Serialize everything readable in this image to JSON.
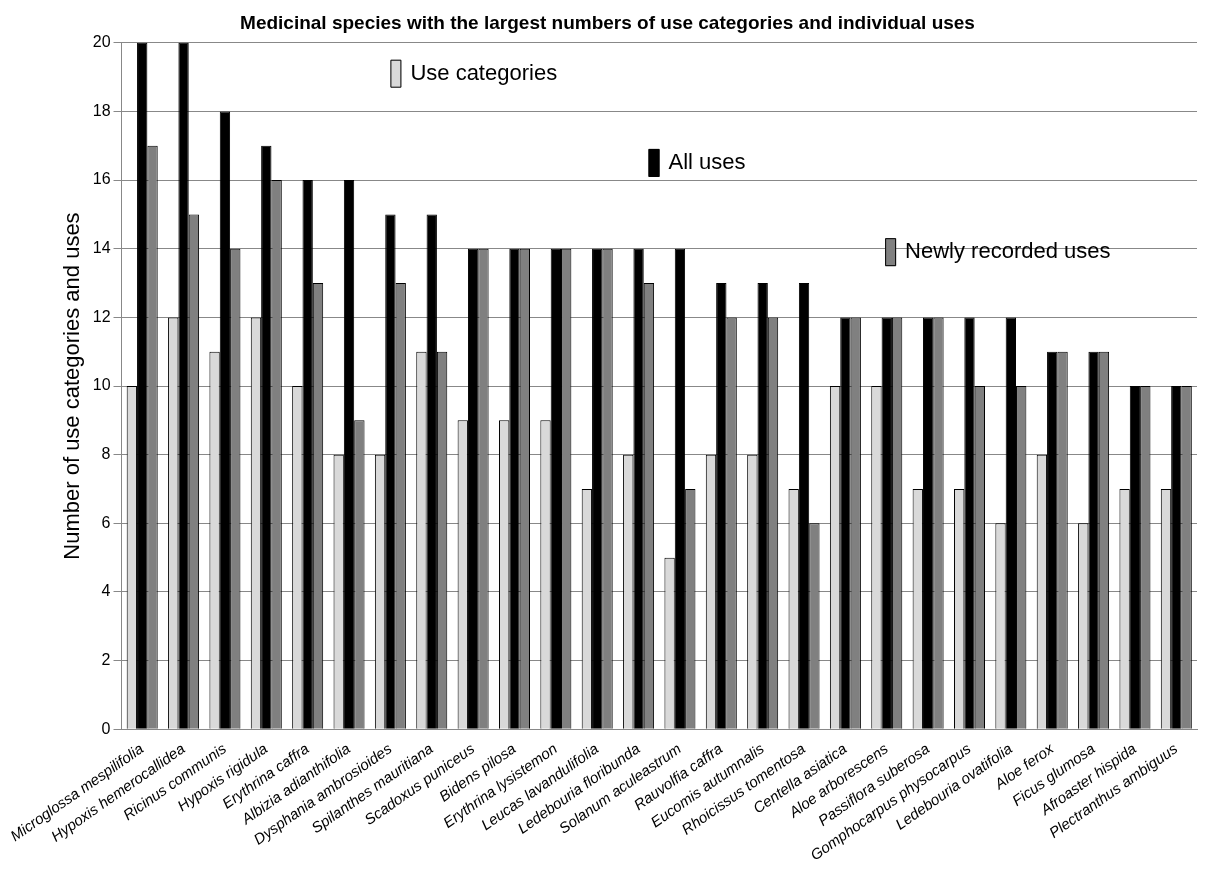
{
  "chart_data": {
    "type": "bar",
    "title": "Medicinal species with the largest numbers of use categories and individual uses",
    "ylabel": "Number of use categories and uses",
    "categories": [
      "Microglossa mespilifolia",
      "Hypoxis hemerocallidea",
      "Ricinus communis",
      "Hypoxis rigidula",
      "Erythrina caffra",
      "Albizia adianthifolia",
      "Dysphania ambrosioides",
      "Spilanthes mauritiana",
      "Scadoxus puniceus",
      "Bidens pilosa",
      "Erythrina lysistemon",
      "Leucas lavandulifolia",
      "Ledebouria floribunda",
      "Solanum aculeastrum",
      "Rauvolfia caffra",
      "Eucomis autumnalis",
      "Rhoicissus tomentosa",
      "Centella asiatica",
      "Aloe arborescens",
      "Passiflora suberosa",
      "Gomphocarpus physocarpus",
      "Ledebouria ovatifolia",
      "Aloe ferox",
      "Ficus glumosa",
      "Afroaster hispida",
      "Plectranthus ambiguus"
    ],
    "series": [
      {
        "name": "Use categories",
        "color": "#d9d9d9",
        "values": [
          10,
          12,
          11,
          12,
          10,
          8,
          8,
          11,
          9,
          9,
          9,
          7,
          8,
          5,
          8,
          8,
          7,
          10,
          10,
          7,
          7,
          6,
          8,
          6,
          7,
          7
        ]
      },
      {
        "name": "All uses",
        "color": "#000000",
        "values": [
          20,
          20,
          18,
          17,
          16,
          16,
          15,
          15,
          14,
          14,
          14,
          14,
          14,
          14,
          13,
          13,
          13,
          12,
          12,
          12,
          12,
          12,
          11,
          11,
          10,
          10
        ]
      },
      {
        "name": "Newly recorded uses",
        "color": "#808080",
        "values": [
          17,
          15,
          14,
          16,
          13,
          9,
          13,
          11,
          14,
          14,
          14,
          14,
          13,
          7,
          12,
          12,
          6,
          12,
          12,
          12,
          10,
          10,
          11,
          11,
          10,
          10
        ]
      }
    ],
    "ylim": [
      0,
      20
    ],
    "yticks": [
      0,
      2,
      4,
      6,
      8,
      10,
      12,
      14,
      16,
      18,
      20
    ],
    "grid": "y",
    "legend": "top"
  }
}
